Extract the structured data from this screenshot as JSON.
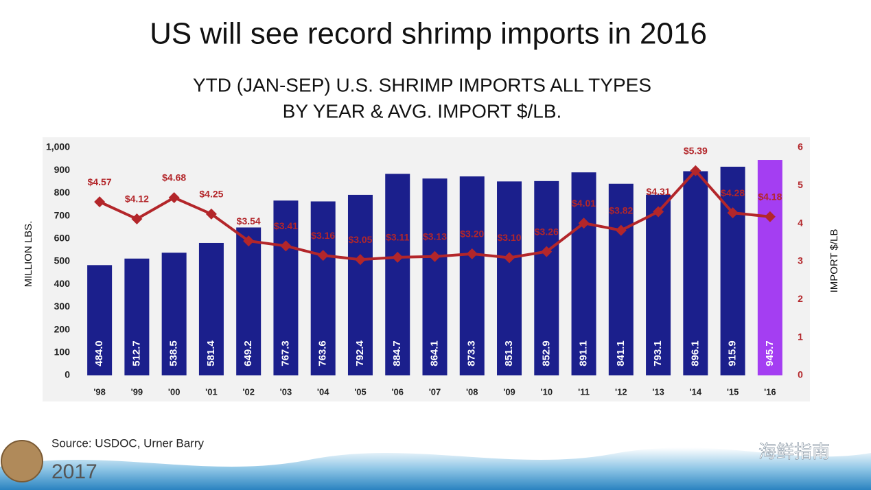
{
  "chart_data": {
    "type": "bar",
    "title": "US will see record shrimp imports in 2016",
    "subtitle": [
      "YTD (JAN-SEP) U.S. SHRIMP IMPORTS ALL TYPES",
      "BY YEAR & AVG. IMPORT $/LB."
    ],
    "ylabel": "MILLION LBS.",
    "y2label": "IMPORT $/LB",
    "categories": [
      "'98",
      "'99",
      "'00",
      "'01",
      "'02",
      "'03",
      "'04",
      "'05",
      "'06",
      "'07",
      "'08",
      "'09",
      "'10",
      "'11",
      "'12",
      "'13",
      "'14",
      "'15",
      "'16"
    ],
    "series": [
      {
        "type": "bar",
        "colors": [
          "#1b1f8c",
          "#1b1f8c",
          "#1b1f8c",
          "#1b1f8c",
          "#1b1f8c",
          "#1b1f8c",
          "#1b1f8c",
          "#1b1f8c",
          "#1b1f8c",
          "#1b1f8c",
          "#1b1f8c",
          "#1b1f8c",
          "#1b1f8c",
          "#1b1f8c",
          "#1b1f8c",
          "#1b1f8c",
          "#1b1f8c",
          "#1b1f8c",
          "#a43ef2"
        ],
        "values": [
          484,
          512.7,
          538.5,
          581.4,
          649.2,
          767.3,
          763.6,
          792.4,
          884.7,
          864.1,
          873.3,
          851.3,
          852.9,
          891.1,
          841.1,
          793.1,
          896.1,
          915.9,
          945.7
        ],
        "value_labels": [
          "484.0",
          "512.7",
          "538.5",
          "581.4",
          "649.2",
          "767.3",
          "763.6",
          "792.4",
          "884.7",
          "864.1",
          "873.3",
          "851.3",
          "852.9",
          "891.1",
          "841.1",
          "793.1",
          "896.1",
          "915.9",
          "945.7"
        ]
      },
      {
        "type": "line",
        "axis": "y2",
        "color": "#b3262a",
        "values": [
          4.57,
          4.12,
          4.68,
          4.25,
          3.54,
          3.41,
          3.16,
          3.05,
          3.11,
          3.13,
          3.2,
          3.1,
          3.26,
          4.01,
          3.82,
          4.31,
          5.39,
          4.28,
          4.18
        ],
        "value_labels": [
          "$4.57",
          "$4.12",
          "$4.68",
          "$4.25",
          "$3.54",
          "$3.41",
          "$3.16",
          "$3.05",
          "$3.11",
          "$3.13",
          "$3.20",
          "$3.10",
          "$3.26",
          "$4.01",
          "$3.82",
          "$4.31",
          "$5.39",
          "$4.28",
          "$4.18"
        ]
      }
    ],
    "ylim": [
      0,
      1000
    ],
    "yticks": [
      0,
      100,
      200,
      300,
      400,
      500,
      600,
      700,
      800,
      900,
      {
        "value": 1000,
        "label": "1,000"
      }
    ],
    "y2lim": [
      0,
      6
    ],
    "y2ticks": [
      0,
      1,
      2,
      3,
      4,
      5,
      6
    ]
  },
  "footer": {
    "source": "Source: USDOC, Urner Barry",
    "year": "2017",
    "watermark": "海鲜指南"
  }
}
